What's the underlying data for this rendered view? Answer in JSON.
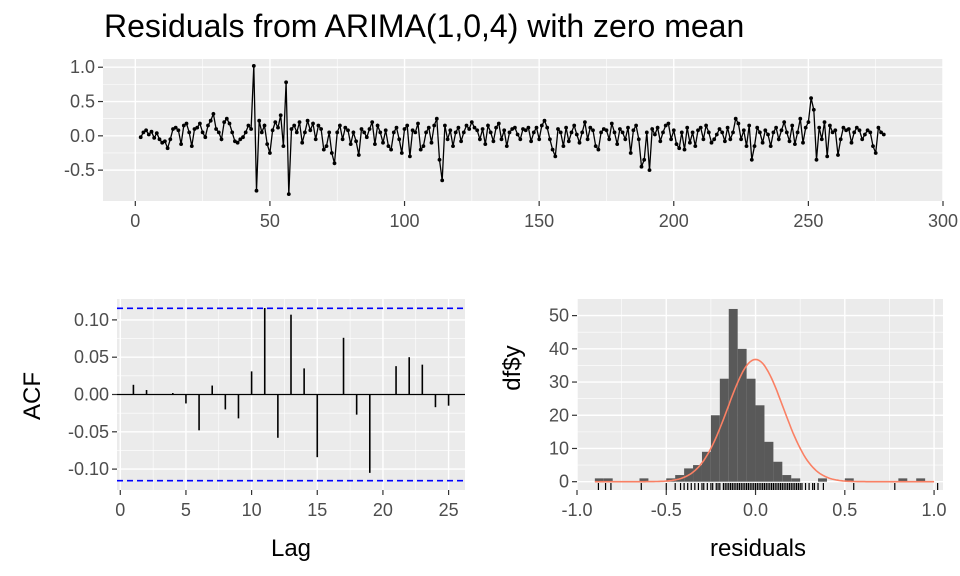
{
  "chart_data": [
    {
      "type": "line",
      "name": "residual-series",
      "title": "Residuals from ARIMA(1,0,4) with zero mean",
      "xlabel": "",
      "ylabel": "",
      "xlim": [
        -12,
        300
      ],
      "ylim": [
        -0.95,
        1.12
      ],
      "x_ticks": [
        0,
        50,
        100,
        150,
        200,
        250,
        300
      ],
      "x_tick_labels": [
        "0",
        "50",
        "100",
        "150",
        "200",
        "250",
        "300"
      ],
      "y_ticks": [
        -0.5,
        0.0,
        0.5,
        1.0
      ],
      "y_tick_labels": [
        "-0.5",
        "0.0",
        "0.5",
        "1.0"
      ],
      "x_start": 2,
      "y": [
        -0.02,
        0.05,
        0.08,
        0.02,
        0.06,
        -0.03,
        0.04,
        -0.05,
        -0.1,
        -0.08,
        -0.18,
        -0.05,
        0.1,
        0.12,
        0.08,
        -0.12,
        0.15,
        0.18,
        0.05,
        -0.15,
        0.1,
        0.12,
        0.18,
        0.05,
        -0.02,
        0.15,
        0.22,
        0.32,
        0.1,
        0.05,
        -0.05,
        0.2,
        0.25,
        0.18,
        0.05,
        -0.08,
        -0.1,
        -0.05,
        -0.02,
        0.05,
        0.15,
        0.1,
        1.02,
        -0.8,
        0.22,
        0.05,
        0.15,
        -0.12,
        -0.25,
        0.08,
        0.2,
        0.12,
        0.3,
        -0.15,
        0.78,
        -0.85,
        0.1,
        0.15,
        0.05,
        0.2,
        -0.1,
        0.05,
        0.22,
        0.08,
        0.18,
        -0.05,
        0.15,
        0.1,
        -0.2,
        -0.15,
        0.05,
        -0.25,
        -0.4,
        0.05,
        0.15,
        -0.05,
        0.12,
        0.08,
        -0.12,
        0.05,
        -0.08,
        -0.28,
        0.1,
        0.05,
        -0.02,
        0.1,
        0.2,
        -0.12,
        0.15,
        0.05,
        -0.1,
        0.08,
        -0.15,
        -0.2,
        0.05,
        0.12,
        -0.05,
        -0.25,
        0.1,
        0.15,
        -0.3,
        0.08,
        0.05,
        0.18,
        -0.2,
        -0.15,
        0.05,
        0.12,
        -0.1,
        0.15,
        0.25,
        -0.35,
        -0.65,
        0.15,
        -0.05,
        0.08,
        -0.15,
        0.05,
        0.12,
        -0.08,
        0.05,
        0.15,
        0.1,
        0.2,
        0.12,
        0.08,
        -0.05,
        0.1,
        -0.12,
        0.15,
        0.05,
        -0.08,
        0.12,
        0.18,
        -0.05,
        0.08,
        -0.15,
        0.05,
        0.1,
        0.12,
        0.02,
        -0.05,
        0.1,
        0.08,
        0.12,
        -0.08,
        0.05,
        0.12,
        -0.05,
        0.15,
        0.22,
        0.12,
        -0.05,
        -0.2,
        -0.3,
        0.1,
        0.05,
        -0.15,
        0.12,
        -0.08,
        0.05,
        0.15,
        0.02,
        -0.1,
        0.05,
        0.2,
        -0.05,
        0.12,
        0.08,
        -0.15,
        -0.2,
        0.05,
        0.1,
        0.08,
        -0.05,
        0.18,
        0.05,
        -0.12,
        0.1,
        0.05,
        -0.05,
        0.12,
        -0.25,
        0.08,
        0.15,
        -0.05,
        -0.45,
        -0.35,
        0.05,
        -0.5,
        0.1,
        0.02,
        0.12,
        -0.08,
        0.05,
        0.15,
        0.18,
        -0.05,
        0.08,
        -0.12,
        -0.18,
        0.05,
        -0.2,
        0.12,
        -0.1,
        0.05,
        -0.15,
        0.08,
        0.12,
        -0.05,
        0.15,
        0.05,
        -0.1,
        -0.05,
        0.02,
        0.1,
        0.05,
        -0.08,
        0.12,
        -0.05,
        0.05,
        0.25,
        0.18,
        -0.05,
        0.08,
        -0.15,
        0.15,
        -0.35,
        -0.15,
        0.12,
        0.05,
        -0.1,
        0.08,
        0.02,
        -0.15,
        0.05,
        0.12,
        -0.05,
        0.08,
        0.2,
        0.05,
        -0.08,
        0.15,
        -0.12,
        0.05,
        0.25,
        -0.1,
        0.12,
        0.2,
        0.55,
        0.38,
        -0.35,
        0.12,
        -0.05,
        0.2,
        -0.3,
        0.15,
        0.05,
        0.08,
        -0.28,
        -0.05,
        0.12,
        0.08,
        0.1,
        -0.1,
        0.05,
        0.12,
        0.08,
        -0.05,
        0.02,
        0.08,
        0.05,
        -0.15,
        -0.25,
        0.12,
        0.05,
        0.02
      ]
    },
    {
      "type": "bar",
      "name": "acf",
      "xlabel": "Lag",
      "ylabel": "ACF",
      "xlim": [
        -0.25,
        26.25
      ],
      "ylim": [
        -0.128,
        0.128
      ],
      "x_ticks": [
        0,
        5,
        10,
        15,
        20,
        25
      ],
      "x_tick_labels": [
        "0",
        "5",
        "10",
        "15",
        "20",
        "25"
      ],
      "y_ticks": [
        -0.1,
        -0.05,
        0.0,
        0.05,
        0.1
      ],
      "y_tick_labels": [
        "-0.10",
        "-0.05",
        "0.00",
        "0.05",
        "0.10"
      ],
      "lags": [
        1,
        2,
        3,
        4,
        5,
        6,
        7,
        8,
        9,
        10,
        11,
        12,
        13,
        14,
        15,
        16,
        17,
        18,
        19,
        20,
        21,
        22,
        23,
        24,
        25
      ],
      "values": [
        0.013,
        0.006,
        0.0,
        0.002,
        -0.012,
        -0.048,
        0.012,
        -0.02,
        -0.032,
        0.031,
        0.116,
        -0.058,
        0.107,
        0.035,
        -0.084,
        0.0,
        0.076,
        -0.027,
        -0.105,
        0.0,
        0.038,
        0.05,
        0.04,
        -0.017,
        -0.015
      ],
      "confidence_bound": 0.1155,
      "confidence_color": "#0000ff"
    },
    {
      "type": "histogram",
      "name": "residual-histogram",
      "xlabel": "residuals",
      "ylabel": "df$y",
      "xlim": [
        -1.0,
        1.05
      ],
      "ylim": [
        -2.5,
        55
      ],
      "x_ticks": [
        -1.0,
        -0.5,
        0.0,
        0.5,
        1.0
      ],
      "x_tick_labels": [
        "-1.0",
        "-0.5",
        "0.0",
        "0.5",
        "1.0"
      ],
      "y_ticks": [
        0,
        10,
        20,
        30,
        40,
        50
      ],
      "y_tick_labels": [
        "0",
        "10",
        "20",
        "30",
        "40",
        "50"
      ],
      "bin_start": -0.9,
      "bin_width": 0.05,
      "counts": [
        1,
        1,
        0,
        0,
        0,
        1,
        0,
        0,
        1,
        2,
        4,
        5,
        9,
        20,
        31,
        52,
        40,
        31,
        23,
        12,
        6,
        2,
        1,
        0,
        0,
        1,
        0,
        0,
        1,
        0,
        0,
        0,
        0,
        0,
        1,
        0,
        1
      ],
      "bar_color": "#595959",
      "density_curve": {
        "mean": 0.0,
        "sd": 0.155,
        "scale": 14.3,
        "color": "#fa8064"
      },
      "rug_values": [
        -0.88,
        -0.84,
        -0.81,
        -0.64,
        -0.5,
        -0.45,
        -0.42,
        -0.4,
        -0.38,
        -0.36,
        -0.34,
        -0.32,
        -0.3,
        -0.29,
        -0.27,
        -0.25,
        -0.24,
        -0.22,
        -0.21,
        -0.2,
        -0.18,
        -0.17,
        -0.16,
        -0.15,
        -0.14,
        -0.13,
        -0.12,
        -0.11,
        -0.1,
        -0.09,
        -0.08,
        -0.07,
        -0.06,
        -0.05,
        -0.04,
        -0.03,
        -0.02,
        -0.01,
        0.0,
        0.01,
        0.02,
        0.03,
        0.04,
        0.05,
        0.06,
        0.07,
        0.08,
        0.09,
        0.1,
        0.11,
        0.12,
        0.13,
        0.14,
        0.15,
        0.16,
        0.17,
        0.18,
        0.19,
        0.2,
        0.21,
        0.22,
        0.23,
        0.24,
        0.25,
        0.26,
        0.28,
        0.3,
        0.32,
        0.33,
        0.35,
        0.38,
        0.55,
        0.78,
        1.02
      ]
    }
  ]
}
